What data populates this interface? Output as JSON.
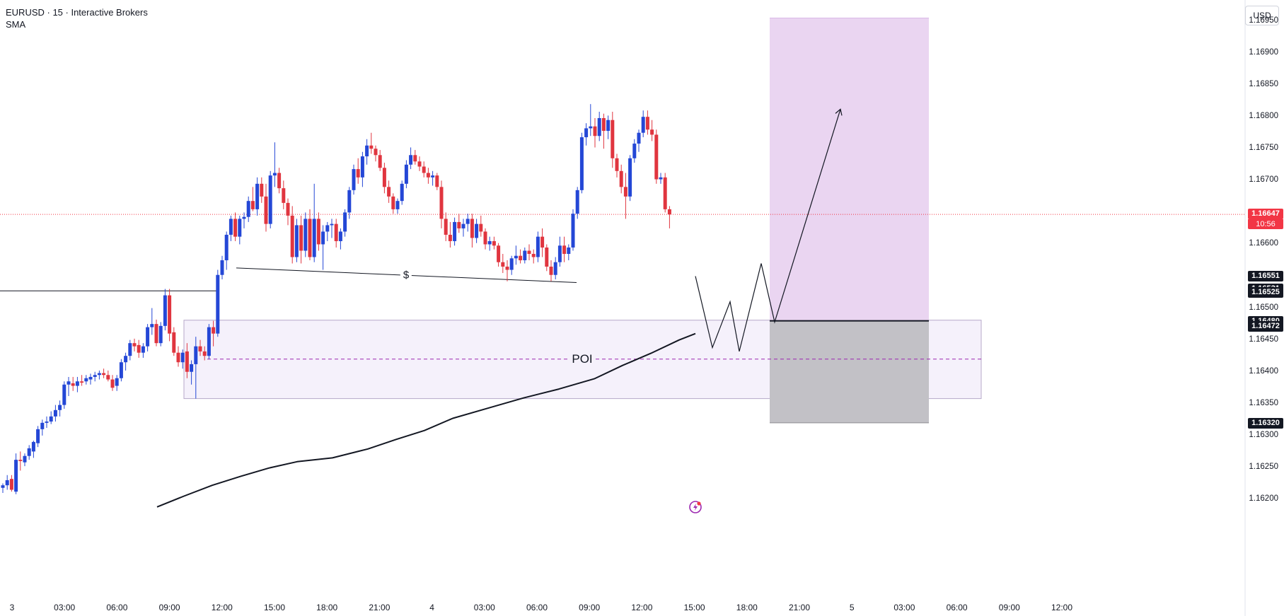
{
  "legend": {
    "title": "EURUSD · 15 · Interactive Brokers",
    "indicator": "SMA"
  },
  "currency_button": "USD",
  "colors": {
    "bull": "#2447d6",
    "bear": "#e0353f",
    "target_zone": "#ead5f1",
    "stop_zone": "#c2c1c6",
    "poi_zone": "#f5f1fb",
    "current_price_line": "#f23645"
  },
  "price_axis": {
    "ticks": [
      "1.16950",
      "1.16900",
      "1.16850",
      "1.16800",
      "1.16750",
      "1.16700",
      "1.16600",
      "1.16500",
      "1.16450",
      "1.16400",
      "1.16350",
      "1.16300",
      "1.16250",
      "1.16200"
    ],
    "tick_values": [
      1.1695,
      1.169,
      1.1685,
      1.168,
      1.1675,
      1.167,
      1.166,
      1.165,
      1.1645,
      1.164,
      1.1635,
      1.163,
      1.1625,
      1.162
    ],
    "tags": [
      {
        "text": "1.16551",
        "value": 1.16551,
        "style": "dark"
      },
      {
        "text": "1.16531",
        "value": 1.16531,
        "style": "dark"
      },
      {
        "text": "1.16525",
        "value": 1.16525,
        "style": "dark"
      },
      {
        "text": "1.16480",
        "value": 1.1648,
        "style": "dark"
      },
      {
        "text": "1.16472",
        "value": 1.16472,
        "style": "dark"
      },
      {
        "text": "1.16320",
        "value": 1.1632,
        "style": "dark"
      }
    ],
    "current_price": {
      "text": "1.16647",
      "value": 1.16647,
      "countdown": "10:56"
    }
  },
  "time_axis": {
    "labels": [
      "3",
      "03:00",
      "06:00",
      "09:00",
      "12:00",
      "15:00",
      "18:00",
      "21:00",
      "4",
      "03:00",
      "06:00",
      "09:00",
      "12:00",
      "15:00",
      "18:00",
      "21:00",
      "5",
      "03:00",
      "06:00",
      "09:00",
      "12:00"
    ]
  },
  "annotations": {
    "poi_label": "POI",
    "liquidity_label": "$",
    "poi_zone": {
      "top": 1.16481,
      "bottom": 1.16358,
      "mid": 1.1642
    },
    "long_position": {
      "entry": 1.1648,
      "target": 1.16955,
      "stop": 1.1632
    },
    "prior_high_line": 1.16527,
    "liquidity_line": {
      "start": 1.16563,
      "end": 1.1654
    }
  },
  "chart_data": {
    "type": "candlestick",
    "symbol": "EURUSD",
    "timeframe": "15",
    "source": "Interactive Brokers",
    "indicator": "SMA",
    "ylim": [
      1.1618,
      1.1697
    ],
    "candles": [
      [
        1.16218,
        1.16225,
        1.1621,
        1.16222
      ],
      [
        1.16222,
        1.16238,
        1.16215,
        1.1623
      ],
      [
        1.16232,
        1.16238,
        1.16212,
        1.16215
      ],
      [
        1.16212,
        1.16272,
        1.16208,
        1.16262
      ],
      [
        1.16262,
        1.16275,
        1.16245,
        1.1626
      ],
      [
        1.16258,
        1.16272,
        1.16252,
        1.16268
      ],
      [
        1.16268,
        1.16285,
        1.16262,
        1.1628
      ],
      [
        1.16275,
        1.16292,
        1.16265,
        1.1629
      ],
      [
        1.16288,
        1.16315,
        1.16282,
        1.1631
      ],
      [
        1.1631,
        1.16325,
        1.163,
        1.1632
      ],
      [
        1.1632,
        1.1633,
        1.16312,
        1.16322
      ],
      [
        1.16322,
        1.16338,
        1.16318,
        1.1633
      ],
      [
        1.1633,
        1.16348,
        1.16322,
        1.1634
      ],
      [
        1.1634,
        1.16355,
        1.1633,
        1.16348
      ],
      [
        1.16348,
        1.16385,
        1.16342,
        1.1638
      ],
      [
        1.1638,
        1.16392,
        1.16362,
        1.16385
      ],
      [
        1.16382,
        1.16392,
        1.1637,
        1.16378
      ],
      [
        1.16378,
        1.16392,
        1.16368,
        1.16385
      ],
      [
        1.16385,
        1.16395,
        1.16378,
        1.16383
      ],
      [
        1.16385,
        1.16395,
        1.1638,
        1.1639
      ],
      [
        1.16388,
        1.16397,
        1.1638,
        1.16392
      ],
      [
        1.16392,
        1.164,
        1.16385,
        1.16395
      ],
      [
        1.16395,
        1.16402,
        1.16388,
        1.16398
      ],
      [
        1.16398,
        1.16405,
        1.1639,
        1.16395
      ],
      [
        1.16395,
        1.16402,
        1.16385,
        1.16388
      ],
      [
        1.16388,
        1.16395,
        1.1637,
        1.16375
      ],
      [
        1.16378,
        1.16395,
        1.1637,
        1.1639
      ],
      [
        1.1639,
        1.1642,
        1.16385,
        1.16415
      ],
      [
        1.16415,
        1.1643,
        1.16402,
        1.16425
      ],
      [
        1.16425,
        1.1645,
        1.16418,
        1.16445
      ],
      [
        1.16445,
        1.16452,
        1.16432,
        1.1644
      ],
      [
        1.16442,
        1.1645,
        1.16422,
        1.1643
      ],
      [
        1.1643,
        1.16445,
        1.16422,
        1.1644
      ],
      [
        1.1644,
        1.16475,
        1.16432,
        1.1647
      ],
      [
        1.1647,
        1.165,
        1.16458,
        1.16475
      ],
      [
        1.16475,
        1.16482,
        1.1644,
        1.16445
      ],
      [
        1.16445,
        1.16478,
        1.1644,
        1.16472
      ],
      [
        1.16472,
        1.1653,
        1.16465,
        1.1652
      ],
      [
        1.1652,
        1.1653,
        1.16448,
        1.1646
      ],
      [
        1.16462,
        1.1647,
        1.16425,
        1.1643
      ],
      [
        1.1643,
        1.1644,
        1.16408,
        1.16415
      ],
      [
        1.16415,
        1.16435,
        1.16405,
        1.1643
      ],
      [
        1.16432,
        1.16445,
        1.1639,
        1.164
      ],
      [
        1.164,
        1.16418,
        1.1638,
        1.16412
      ],
      [
        1.16412,
        1.16455,
        1.16358,
        1.1644
      ],
      [
        1.1644,
        1.1645,
        1.16425,
        1.16432
      ],
      [
        1.16432,
        1.1644,
        1.16418,
        1.16425
      ],
      [
        1.16425,
        1.16475,
        1.1642,
        1.1647
      ],
      [
        1.1647,
        1.1648,
        1.1644,
        1.1646
      ],
      [
        1.1646,
        1.1656,
        1.16455,
        1.16552
      ],
      [
        1.16552,
        1.16582,
        1.16545,
        1.16575
      ],
      [
        1.16575,
        1.1662,
        1.1656,
        1.16615
      ],
      [
        1.16615,
        1.16645,
        1.16605,
        1.1664
      ],
      [
        1.1664,
        1.1665,
        1.16605,
        1.16612
      ],
      [
        1.16612,
        1.16645,
        1.166,
        1.1664
      ],
      [
        1.1664,
        1.1665,
        1.16625,
        1.16643
      ],
      [
        1.16643,
        1.16675,
        1.16635,
        1.16668
      ],
      [
        1.16668,
        1.1669,
        1.16652,
        1.16655
      ],
      [
        1.16655,
        1.16705,
        1.16645,
        1.16695
      ],
      [
        1.16695,
        1.16705,
        1.16665,
        1.16675
      ],
      [
        1.16675,
        1.16695,
        1.1662,
        1.16632
      ],
      [
        1.16632,
        1.16715,
        1.16625,
        1.16708
      ],
      [
        1.16708,
        1.1676,
        1.1669,
        1.16712
      ],
      [
        1.16712,
        1.1672,
        1.1668,
        1.16688
      ],
      [
        1.16688,
        1.167,
        1.16655,
        1.16665
      ],
      [
        1.16665,
        1.16672,
        1.1663,
        1.16645
      ],
      [
        1.16645,
        1.1666,
        1.1657,
        1.1658
      ],
      [
        1.1658,
        1.1664,
        1.16572,
        1.1663
      ],
      [
        1.1663,
        1.16645,
        1.1657,
        1.1659
      ],
      [
        1.1659,
        1.1665,
        1.1658,
        1.1664
      ],
      [
        1.1664,
        1.16655,
        1.16575,
        1.1658
      ],
      [
        1.1658,
        1.16695,
        1.16572,
        1.1664
      ],
      [
        1.1664,
        1.1665,
        1.1659,
        1.166
      ],
      [
        1.166,
        1.1663,
        1.1656,
        1.1662
      ],
      [
        1.1662,
        1.16635,
        1.16605,
        1.1663
      ],
      [
        1.1663,
        1.1664,
        1.1661,
        1.16632
      ],
      [
        1.16632,
        1.1664,
        1.16595,
        1.16605
      ],
      [
        1.16605,
        1.16625,
        1.16592,
        1.1662
      ],
      [
        1.1662,
        1.16655,
        1.16612,
        1.1665
      ],
      [
        1.1665,
        1.1669,
        1.1664,
        1.16685
      ],
      [
        1.16685,
        1.16725,
        1.16678,
        1.16718
      ],
      [
        1.16718,
        1.16735,
        1.16695,
        1.16705
      ],
      [
        1.16705,
        1.16745,
        1.1669,
        1.16738
      ],
      [
        1.16738,
        1.16765,
        1.16725,
        1.16755
      ],
      [
        1.16755,
        1.16775,
        1.16742,
        1.1675
      ],
      [
        1.1675,
        1.16755,
        1.1673,
        1.1674
      ],
      [
        1.1674,
        1.16748,
        1.16715,
        1.1672
      ],
      [
        1.1672,
        1.16728,
        1.1668,
        1.1669
      ],
      [
        1.1669,
        1.167,
        1.16665,
        1.16675
      ],
      [
        1.16675,
        1.1668,
        1.16648,
        1.16655
      ],
      [
        1.16655,
        1.16672,
        1.16648,
        1.16668
      ],
      [
        1.16668,
        1.167,
        1.16662,
        1.16695
      ],
      [
        1.16695,
        1.16732,
        1.16688,
        1.16725
      ],
      [
        1.16725,
        1.16752,
        1.16718,
        1.1674
      ],
      [
        1.1674,
        1.16748,
        1.16725,
        1.1673
      ],
      [
        1.1673,
        1.16738,
        1.16715,
        1.16722
      ],
      [
        1.16722,
        1.1673,
        1.16705,
        1.16712
      ],
      [
        1.16712,
        1.1672,
        1.16695,
        1.16705
      ],
      [
        1.16705,
        1.16715,
        1.16692,
        1.16708
      ],
      [
        1.16708,
        1.16712,
        1.16685,
        1.1669
      ],
      [
        1.1669,
        1.167,
        1.16625,
        1.1664
      ],
      [
        1.1664,
        1.1665,
        1.16605,
        1.16615
      ],
      [
        1.16615,
        1.16635,
        1.16595,
        1.16605
      ],
      [
        1.16605,
        1.16642,
        1.16598,
        1.16635
      ],
      [
        1.16635,
        1.16648,
        1.16618,
        1.16625
      ],
      [
        1.16625,
        1.1664,
        1.16612,
        1.16632
      ],
      [
        1.16632,
        1.16648,
        1.1662,
        1.1664
      ],
      [
        1.1664,
        1.16648,
        1.16595,
        1.1661
      ],
      [
        1.1661,
        1.1664,
        1.16602,
        1.16632
      ],
      [
        1.16632,
        1.16645,
        1.16612,
        1.1662
      ],
      [
        1.1662,
        1.16625,
        1.16592,
        1.166
      ],
      [
        1.166,
        1.16612,
        1.1659,
        1.16605
      ],
      [
        1.16605,
        1.16612,
        1.16592,
        1.16598
      ],
      [
        1.16598,
        1.16602,
        1.16565,
        1.16572
      ],
      [
        1.16572,
        1.16585,
        1.16555,
        1.16565
      ],
      [
        1.16565,
        1.16575,
        1.16542,
        1.1656
      ],
      [
        1.1656,
        1.16582,
        1.16552,
        1.16578
      ],
      [
        1.16578,
        1.16598,
        1.16568,
        1.16582
      ],
      [
        1.16582,
        1.16592,
        1.1657,
        1.16575
      ],
      [
        1.16575,
        1.16595,
        1.1657,
        1.1659
      ],
      [
        1.1659,
        1.166,
        1.16575,
        1.16585
      ],
      [
        1.16585,
        1.16592,
        1.1657,
        1.1658
      ],
      [
        1.1658,
        1.1662,
        1.16572,
        1.16612
      ],
      [
        1.16612,
        1.16625,
        1.1658,
        1.16595
      ],
      [
        1.16595,
        1.166,
        1.16558,
        1.16565
      ],
      [
        1.16565,
        1.16575,
        1.16542,
        1.16552
      ],
      [
        1.16552,
        1.1658,
        1.16545,
        1.16572
      ],
      [
        1.16572,
        1.16612,
        1.16565,
        1.16598
      ],
      [
        1.16598,
        1.16612,
        1.16572,
        1.16585
      ],
      [
        1.16585,
        1.166,
        1.16575,
        1.16595
      ],
      [
        1.16595,
        1.16655,
        1.1659,
        1.16648
      ],
      [
        1.16648,
        1.1669,
        1.1664,
        1.16685
      ],
      [
        1.16685,
        1.16775,
        1.1668,
        1.16768
      ],
      [
        1.16768,
        1.1679,
        1.16755,
        1.16782
      ],
      [
        1.16782,
        1.1682,
        1.1677,
        1.16785
      ],
      [
        1.16785,
        1.16798,
        1.16752,
        1.1677
      ],
      [
        1.1677,
        1.16808,
        1.16762,
        1.16798
      ],
      [
        1.16798,
        1.16805,
        1.1675,
        1.16778
      ],
      [
        1.16778,
        1.16802,
        1.16765,
        1.16795
      ],
      [
        1.16795,
        1.16808,
        1.1672,
        1.16735
      ],
      [
        1.16735,
        1.16742,
        1.16705,
        1.16715
      ],
      [
        1.16715,
        1.16725,
        1.1668,
        1.1669
      ],
      [
        1.1669,
        1.16712,
        1.1664,
        1.16675
      ],
      [
        1.16675,
        1.1674,
        1.16668,
        1.16735
      ],
      [
        1.16735,
        1.16765,
        1.16728,
        1.16758
      ],
      [
        1.16758,
        1.1678,
        1.16745,
        1.16775
      ],
      [
        1.16775,
        1.1681,
        1.16768,
        1.168
      ],
      [
        1.168,
        1.1681,
        1.16772,
        1.1678
      ],
      [
        1.1678,
        1.16795,
        1.16762,
        1.16772
      ],
      [
        1.16772,
        1.1678,
        1.16695,
        1.16702
      ],
      [
        1.16702,
        1.16712,
        1.16695,
        1.16705
      ],
      [
        1.16705,
        1.16712,
        1.1665,
        1.16655
      ],
      [
        1.16655,
        1.1666,
        1.16625,
        1.16647
      ]
    ],
    "sma": [
      [
        222,
        1.16188
      ],
      [
        260,
        1.16205
      ],
      [
        300,
        1.16222
      ],
      [
        340,
        1.16236
      ],
      [
        380,
        1.16249
      ],
      [
        420,
        1.16259
      ],
      [
        470,
        1.16265
      ],
      [
        520,
        1.16279
      ],
      [
        560,
        1.16294
      ],
      [
        600,
        1.16308
      ],
      [
        640,
        1.16327
      ],
      [
        690,
        1.16343
      ],
      [
        740,
        1.16359
      ],
      [
        790,
        1.16373
      ],
      [
        840,
        1.16389
      ],
      [
        880,
        1.1641
      ],
      [
        920,
        1.16429
      ],
      [
        960,
        1.1645
      ],
      [
        983,
        1.1646
      ]
    ]
  }
}
